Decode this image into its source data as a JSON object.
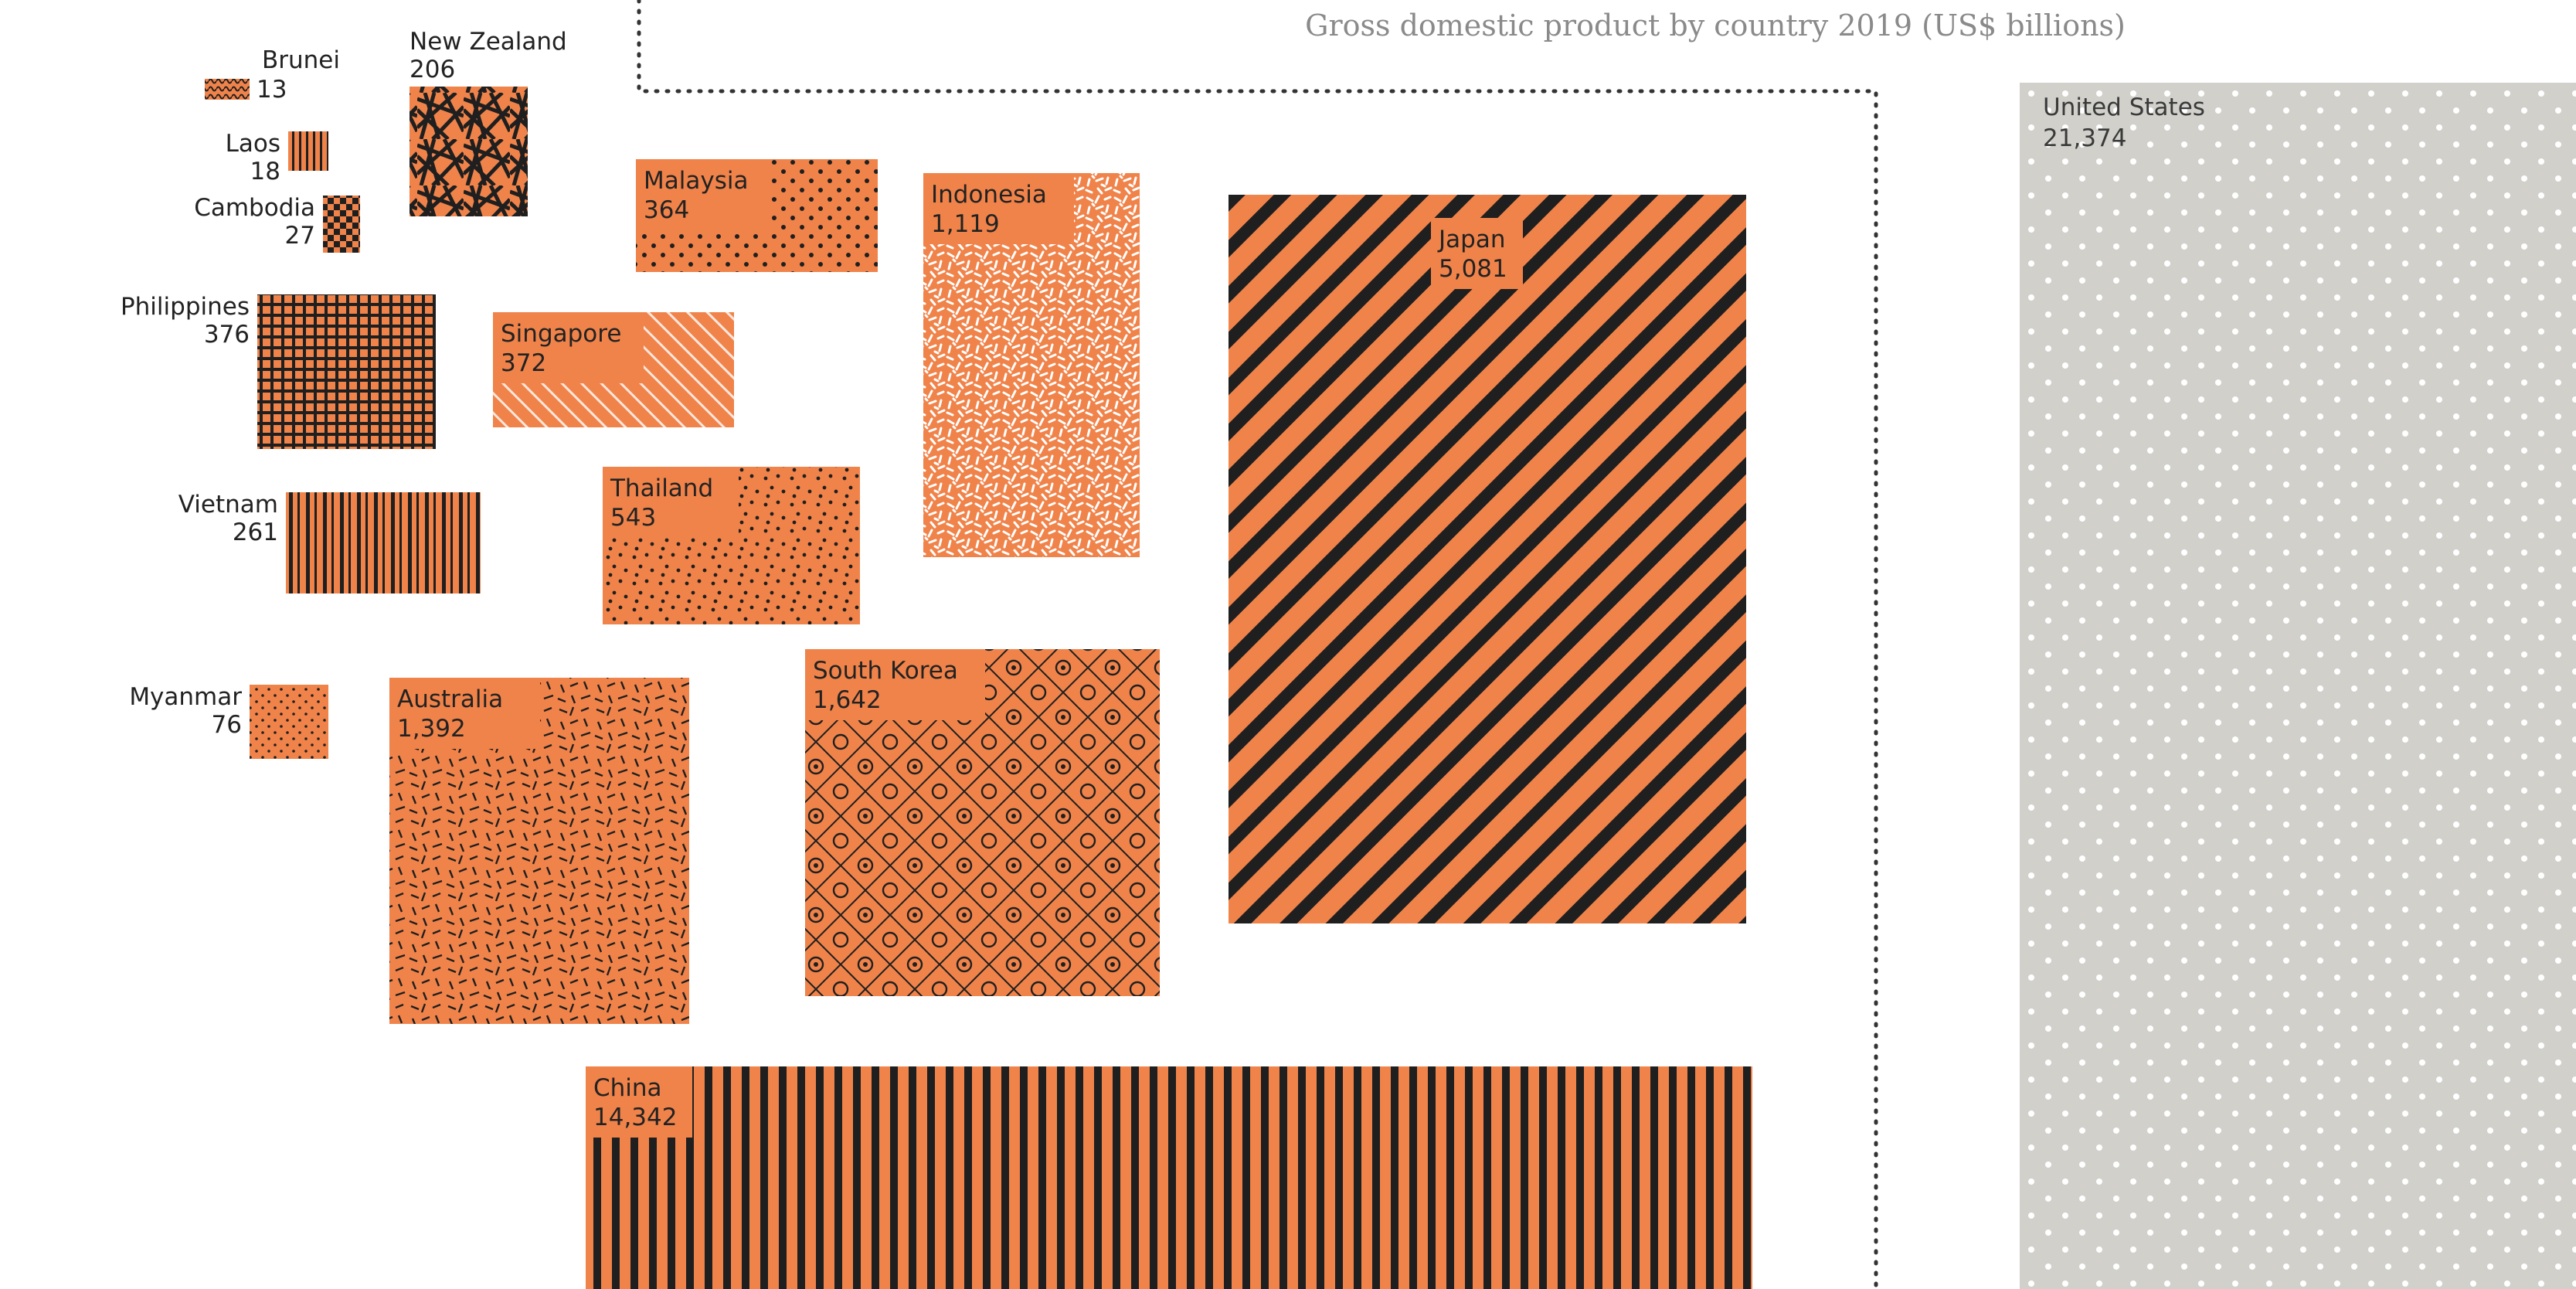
{
  "colors": {
    "accent": "#f0834a",
    "ink": "#1f1f1f",
    "us_fill": "#d1d0cb",
    "background": "#ffffff"
  },
  "chart_data": {
    "type": "area",
    "title": "Gross domestic product by country 2019 (US$ billions)",
    "unit": "US$ billions",
    "series": [
      {
        "country": "Brunei",
        "value": 13,
        "value_label": "13"
      },
      {
        "country": "Laos",
        "value": 18,
        "value_label": "18"
      },
      {
        "country": "Cambodia",
        "value": 27,
        "value_label": "27"
      },
      {
        "country": "Myanmar",
        "value": 76,
        "value_label": "76"
      },
      {
        "country": "New Zealand",
        "value": 206,
        "value_label": "206"
      },
      {
        "country": "Vietnam",
        "value": 261,
        "value_label": "261"
      },
      {
        "country": "Malaysia",
        "value": 364,
        "value_label": "364"
      },
      {
        "country": "Singapore",
        "value": 372,
        "value_label": "372"
      },
      {
        "country": "Philippines",
        "value": 376,
        "value_label": "376"
      },
      {
        "country": "Thailand",
        "value": 543,
        "value_label": "543"
      },
      {
        "country": "Indonesia",
        "value": 1119,
        "value_label": "1,119"
      },
      {
        "country": "Australia",
        "value": 1392,
        "value_label": "1,392"
      },
      {
        "country": "South Korea",
        "value": 1642,
        "value_label": "1,642"
      },
      {
        "country": "Japan",
        "value": 5081,
        "value_label": "5,081"
      },
      {
        "country": "China",
        "value": 14342,
        "value_label": "14,342"
      },
      {
        "country": "United States",
        "value": 21374,
        "value_label": "21,374"
      }
    ]
  }
}
